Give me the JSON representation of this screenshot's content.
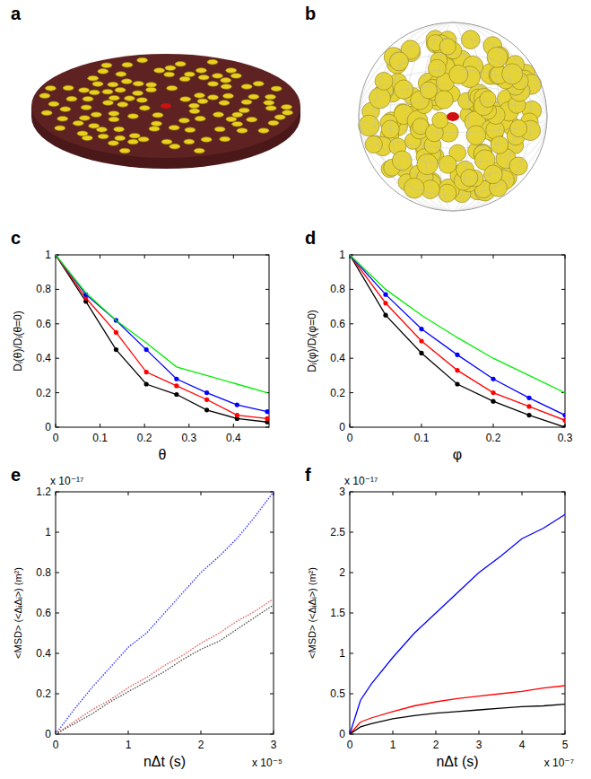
{
  "chart_data": [
    {
      "panel": "c",
      "type": "line",
      "x_label": "θ",
      "y_label": "Dᵢ(θ)/Dᵢ(θ=0)",
      "x": [
        0,
        0.068,
        0.136,
        0.204,
        0.272,
        0.34,
        0.408,
        0.476
      ],
      "xlim": [
        0,
        0.48
      ],
      "xticks": [
        0,
        0.1,
        0.2,
        0.3,
        0.4
      ],
      "ylim": [
        0,
        1
      ],
      "yticks": [
        0,
        0.2,
        0.4,
        0.6,
        0.8,
        1
      ],
      "series": [
        {
          "color": "#000000",
          "marker": "dot",
          "line_style": "solid",
          "values": [
            1,
            0.73,
            0.45,
            0.25,
            0.19,
            0.1,
            0.05,
            0.03
          ]
        },
        {
          "color": "#ff0000",
          "marker": "dot",
          "line_style": "solid",
          "values": [
            1,
            0.75,
            0.55,
            0.32,
            0.24,
            0.16,
            0.07,
            0.05
          ]
        },
        {
          "color": "#0000ff",
          "marker": "dot",
          "line_style": "solid",
          "values": [
            1,
            0.77,
            0.62,
            0.45,
            0.28,
            0.2,
            0.13,
            0.09
          ]
        },
        {
          "color": "#00ee00",
          "marker": "none",
          "line_style": "solid",
          "values": [
            1,
            0.78,
            0.62,
            0.49,
            0.35,
            0.3,
            0.25,
            0.2
          ]
        }
      ]
    },
    {
      "panel": "d",
      "type": "line",
      "x_label": "φ",
      "y_label": "Dᵢ(φ)/Dᵢ(φ=0)",
      "x": [
        0,
        0.05,
        0.1,
        0.15,
        0.2,
        0.25,
        0.3
      ],
      "xlim": [
        0,
        0.3
      ],
      "xticks": [
        0,
        0.1,
        0.2,
        0.3
      ],
      "ylim": [
        0,
        1
      ],
      "yticks": [
        0,
        0.2,
        0.4,
        0.6,
        0.8,
        1
      ],
      "series": [
        {
          "color": "#000000",
          "marker": "dot",
          "line_style": "solid",
          "values": [
            1,
            0.65,
            0.43,
            0.25,
            0.15,
            0.07,
            0.0
          ]
        },
        {
          "color": "#ff0000",
          "marker": "dot",
          "line_style": "solid",
          "values": [
            1,
            0.72,
            0.5,
            0.33,
            0.2,
            0.12,
            0.04
          ]
        },
        {
          "color": "#0000ff",
          "marker": "dot",
          "line_style": "solid",
          "values": [
            1,
            0.77,
            0.57,
            0.42,
            0.28,
            0.17,
            0.07
          ]
        },
        {
          "color": "#00ee00",
          "marker": "none",
          "line_style": "solid",
          "values": [
            1,
            0.8,
            0.65,
            0.52,
            0.4,
            0.3,
            0.2
          ]
        }
      ]
    },
    {
      "panel": "e",
      "type": "line",
      "x_label": "nΔt (s)",
      "y_label": "<MSD> (<ΔᵢΔᵢ>) (m²)",
      "x_multiplier": "x 10⁻⁵",
      "y_multiplier": "x 10⁻¹⁷",
      "x": [
        0,
        0.25,
        0.5,
        0.75,
        1,
        1.25,
        1.5,
        1.75,
        2,
        2.25,
        2.5,
        2.75,
        3
      ],
      "xlim": [
        0,
        3
      ],
      "xticks": [
        0,
        1,
        2,
        3
      ],
      "ylim": [
        0,
        1.2
      ],
      "yticks": [
        0,
        0.2,
        0.4,
        0.6,
        0.8,
        1,
        1.2
      ],
      "series": [
        {
          "color": "#3a3aff",
          "marker": "none",
          "line_style": "dotted",
          "values": [
            0,
            0.12,
            0.23,
            0.33,
            0.43,
            0.5,
            0.6,
            0.7,
            0.8,
            0.88,
            0.97,
            1.08,
            1.2
          ]
        },
        {
          "color": "#e06060",
          "marker": "none",
          "line_style": "dotted",
          "values": [
            0,
            0.06,
            0.12,
            0.17,
            0.23,
            0.28,
            0.34,
            0.39,
            0.45,
            0.5,
            0.56,
            0.61,
            0.67
          ]
        },
        {
          "color": "#555555",
          "marker": "none",
          "line_style": "dotted",
          "values": [
            0,
            0.05,
            0.1,
            0.16,
            0.21,
            0.26,
            0.31,
            0.37,
            0.42,
            0.46,
            0.52,
            0.58,
            0.64
          ]
        }
      ]
    },
    {
      "panel": "f",
      "type": "line",
      "x_label": "nΔt (s)",
      "y_label": "<MSD> (<ΔᵢΔᵢ>) (m²)",
      "x_multiplier": "x 10⁻⁷",
      "y_multiplier": "x 10⁻¹⁷",
      "x": [
        0,
        0.25,
        0.5,
        1,
        1.5,
        2,
        2.5,
        3,
        3.5,
        4,
        4.5,
        5
      ],
      "xlim": [
        0,
        5
      ],
      "xticks": [
        0,
        1,
        2,
        3,
        4,
        5
      ],
      "ylim": [
        0,
        3
      ],
      "yticks": [
        0,
        0.5,
        1,
        1.5,
        2,
        2.5,
        3
      ],
      "series": [
        {
          "color": "#0000ff",
          "marker": "none",
          "line_style": "solid",
          "values": [
            0,
            0.42,
            0.62,
            0.95,
            1.25,
            1.5,
            1.75,
            2.0,
            2.2,
            2.42,
            2.55,
            2.72
          ]
        },
        {
          "color": "#ff0000",
          "marker": "none",
          "line_style": "solid",
          "values": [
            0,
            0.15,
            0.2,
            0.28,
            0.35,
            0.4,
            0.44,
            0.47,
            0.5,
            0.53,
            0.57,
            0.6
          ]
        },
        {
          "color": "#000000",
          "marker": "none",
          "line_style": "solid",
          "values": [
            0,
            0.09,
            0.13,
            0.19,
            0.23,
            0.26,
            0.28,
            0.3,
            0.32,
            0.34,
            0.35,
            0.37
          ]
        }
      ]
    }
  ],
  "illustrations": [
    {
      "panel": "a"
    },
    {
      "panel": "b"
    }
  ]
}
